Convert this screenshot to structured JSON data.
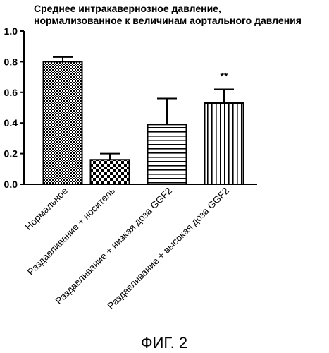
{
  "figure": {
    "caption": "ФИГ. 2"
  },
  "chart_data": {
    "type": "bar",
    "title_lines": [
      "Среднее интракавернозное давление,",
      "нормализованное к величинам аортального давления"
    ],
    "categories": [
      "Нормальное",
      "Раздавливание + носитель",
      "Раздавливание + низкая доза GGF2",
      "Раздавливание + высокая доза GGF2"
    ],
    "values": [
      0.8,
      0.16,
      0.39,
      0.53
    ],
    "errors": [
      0.03,
      0.04,
      0.17,
      0.09
    ],
    "annotations": [
      "",
      "",
      "",
      "**"
    ],
    "fill_patterns": [
      "fine-checker",
      "coarse-checker",
      "horizontal-lines",
      "vertical-lines"
    ],
    "yticks": [
      "0.0",
      "0.2",
      "0.4",
      "0.6",
      "0.8",
      "1.0"
    ],
    "ylim": [
      0,
      1.0
    ],
    "xlabel": "",
    "ylabel": "",
    "grid": false
  }
}
